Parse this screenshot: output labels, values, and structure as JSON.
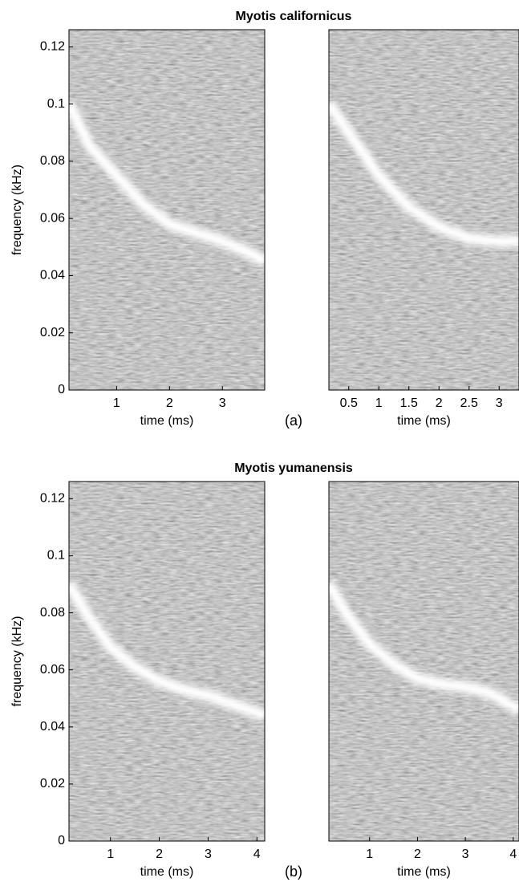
{
  "chart_data": [
    {
      "type": "spectrogram",
      "title": "Myotis californicus",
      "ylabel": "frequency (kHz)",
      "xlabel": "time (ms)",
      "panel_label": "(a)",
      "x": [
        0.1,
        0.5,
        1,
        1.5,
        2,
        2.5,
        3,
        3.5,
        3.8
      ],
      "values": [
        0.1,
        0.085,
        0.075,
        0.065,
        0.058,
        0.055,
        0.052,
        0.048,
        0.045
      ],
      "color": "#ffffff",
      "xlim": [
        0.1,
        3.8
      ],
      "ylim": [
        0,
        0.126
      ],
      "xticks": [
        1,
        2,
        3
      ],
      "yticks": [
        0,
        0.02,
        0.04,
        0.06,
        0.08,
        0.1,
        0.12
      ]
    },
    {
      "type": "spectrogram",
      "xlabel": "time (ms)",
      "x": [
        0.17,
        0.5,
        1,
        1.5,
        2,
        2.5,
        3,
        3.33
      ],
      "values": [
        0.1,
        0.09,
        0.075,
        0.064,
        0.057,
        0.053,
        0.052,
        0.052
      ],
      "color": "#ffffff",
      "xlim": [
        0.17,
        3.33
      ],
      "ylim": [
        0,
        0.126
      ],
      "xticks": [
        0.5,
        1,
        1.5,
        2,
        2.5,
        3
      ]
    },
    {
      "type": "spectrogram",
      "title": "Myotis yumanensis",
      "ylabel": "frequency (kHz)",
      "xlabel": "time (ms)",
      "panel_label": "(b)",
      "x": [
        0.15,
        0.5,
        1,
        1.5,
        2,
        2.5,
        3,
        3.5,
        4.16
      ],
      "values": [
        0.09,
        0.08,
        0.068,
        0.061,
        0.056,
        0.053,
        0.051,
        0.048,
        0.044
      ],
      "color": "#ffffff",
      "xlim": [
        0.15,
        4.16
      ],
      "ylim": [
        0,
        0.126
      ],
      "xticks": [
        1,
        2,
        3,
        4
      ],
      "yticks": [
        0,
        0.02,
        0.04,
        0.06,
        0.08,
        0.1,
        0.12
      ]
    },
    {
      "type": "spectrogram",
      "xlabel": "time (ms)",
      "x": [
        0.15,
        0.5,
        1,
        1.5,
        2,
        2.5,
        3,
        3.5,
        4.12
      ],
      "values": [
        0.09,
        0.08,
        0.069,
        0.062,
        0.057,
        0.055,
        0.054,
        0.052,
        0.046
      ],
      "color": "#ffffff",
      "xlim": [
        0.15,
        4.12
      ],
      "ylim": [
        0,
        0.126
      ],
      "xticks": [
        1,
        2,
        3,
        4
      ]
    }
  ]
}
